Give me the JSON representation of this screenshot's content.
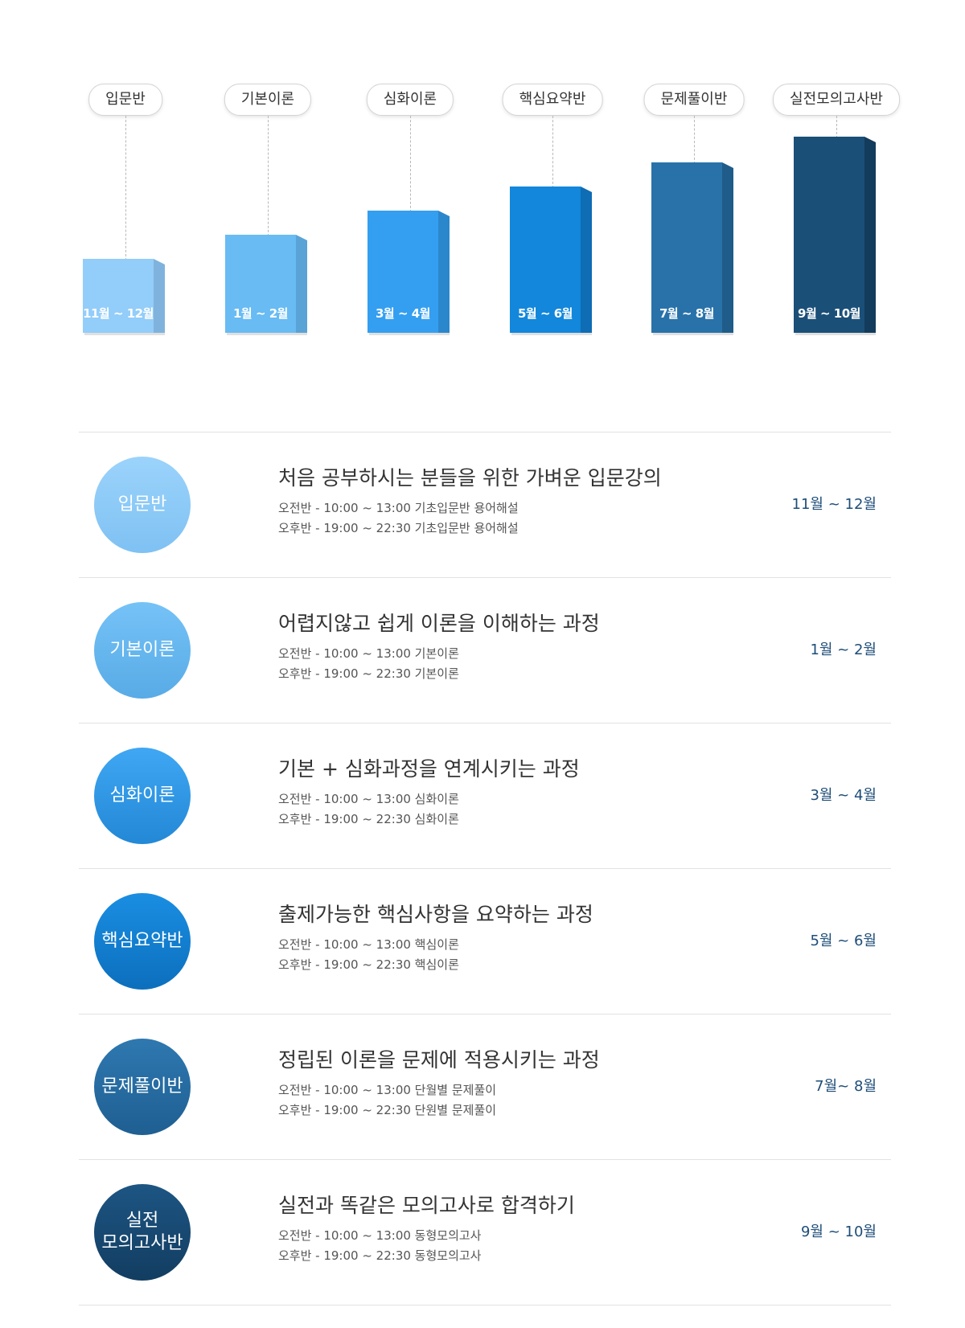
{
  "steps": [
    {
      "label": "입문반",
      "months": "11월 ~ 12월",
      "face": "#93cdf9",
      "side": "#7fb3dd"
    },
    {
      "label": "기본이론",
      "months": "1월 ~ 2월",
      "face": "#68bbf3",
      "side": "#5aa3d6"
    },
    {
      "label": "심화이론",
      "months": "3월 ~ 4월",
      "face": "#349ff0",
      "side": "#2b87cc"
    },
    {
      "label": "핵심요약반",
      "months": "5월 ~ 6월",
      "face": "#1287db",
      "side": "#0e6db4"
    },
    {
      "label": "문제풀이반",
      "months": "7월 ~ 8월",
      "face": "#2872a9",
      "side": "#1f5c89"
    },
    {
      "label": "실전모의고사반",
      "months": "9월 ~ 10월",
      "face": "#1a4f78",
      "side": "#133b5b"
    }
  ],
  "courses": [
    {
      "circle_lines": [
        "입문반"
      ],
      "title": "처음 공부하시는 분들을 위한 가벼운 입문강의",
      "morning": "오전반 - 10:00 ~ 13:00 기초입문반 용어해설",
      "evening": "오후반 - 19:00 ~ 22:30 기초입문반 용어해설",
      "period": "11월 ~ 12월",
      "color_top": "#9bd3fb",
      "color_bottom": "#7fc1f3"
    },
    {
      "circle_lines": [
        "기본이론"
      ],
      "title": "어렵지않고 쉽게 이론을 이해하는 과정",
      "morning": "오전반 - 10:00 ~ 13:00 기본이론",
      "evening": "오후반 - 19:00 ~ 22:30 기본이론",
      "period": "1월 ~ 2월",
      "color_top": "#75c2f7",
      "color_bottom": "#58abe6"
    },
    {
      "circle_lines": [
        "심화이론"
      ],
      "title": "기본 + 심화과정을 연계시키는 과정",
      "morning": "오전반 - 10:00 ~ 13:00 심화이론",
      "evening": "오후반 - 19:00 ~ 22:30 심화이론",
      "period": "3월 ~ 4월",
      "color_top": "#3fa7f3",
      "color_bottom": "#2388d6"
    },
    {
      "circle_lines": [
        "핵심요약반"
      ],
      "title": "출제가능한 핵심사항을 요약하는 과정",
      "morning": "오전반 - 10:00 ~ 13:00 핵심이론",
      "evening": "오후반 - 19:00 ~ 22:30 핵심이론",
      "period": "5월 ~ 6월",
      "color_top": "#1a8ee2",
      "color_bottom": "#0c6fbd"
    },
    {
      "circle_lines": [
        "문제풀이반"
      ],
      "title": "정립된 이론을 문제에 적용시키는 과정",
      "morning": "오전반 - 10:00 ~ 13:00 단월별 문제풀이",
      "evening": "오후반 - 19:00 ~ 22:30 단원별 문제풀이",
      "period": "7월~ 8월",
      "color_top": "#2e78b0",
      "color_bottom": "#1f5f92"
    },
    {
      "circle_lines": [
        "실전",
        "모의고사반"
      ],
      "title": "실전과 똑같은 모의고사로 합격하기",
      "morning": "오전반 - 10:00 ~ 13:00 동형모의고사",
      "evening": "오후반 - 19:00 ~ 22:30 동형모의고사",
      "period": "9월 ~ 10월",
      "color_top": "#1d5583",
      "color_bottom": "#123d61"
    }
  ]
}
